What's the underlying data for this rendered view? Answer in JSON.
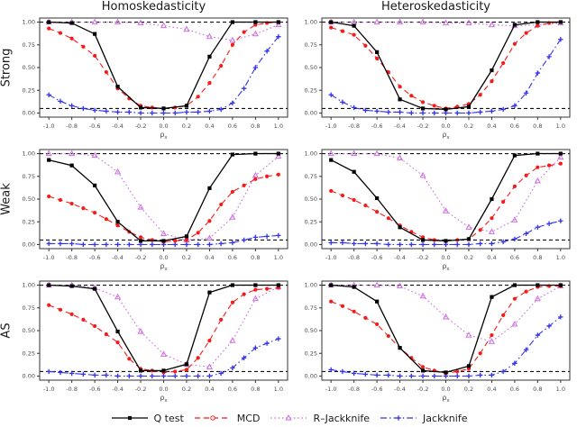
{
  "figure": {
    "col_titles": [
      "Homoskedasticity",
      "Heteroskedasticity"
    ],
    "row_labels": [
      "Strong",
      "Weak",
      "AS"
    ],
    "x_axis_symbol": "ρ",
    "x_axis_subscript": "x"
  },
  "axes": {
    "x_ticks": [
      -1.0,
      -0.8,
      -0.6,
      -0.4,
      -0.2,
      0.0,
      0.2,
      0.4,
      0.6,
      0.8,
      1.0
    ],
    "x_tick_labels": [
      "-1.0",
      "-0.8",
      "-0.6",
      "-0.4",
      "-0.2",
      "0.0",
      "0.2",
      "0.4",
      "0.6",
      "0.8",
      "1.0"
    ],
    "y_ticks": [
      0.0,
      0.25,
      0.5,
      0.75,
      1.0
    ],
    "y_tick_labels": [
      "0.00",
      "0.25",
      "0.50",
      "0.75",
      "1.00"
    ],
    "x_range": [
      -1.0,
      1.0
    ],
    "y_range": [
      0.0,
      1.0
    ],
    "reference_lines": [
      0.05,
      1.0
    ],
    "grid": "off"
  },
  "legend": {
    "position": "bottom",
    "items": [
      {
        "label": "Q test",
        "color": "#000000",
        "dash": "solid",
        "marker": "square"
      },
      {
        "label": "MCD",
        "color": "#F61B1B",
        "dash": "dashed",
        "marker": "circle"
      },
      {
        "label": "R–Jackknife",
        "color": "#CC6FDF",
        "dash": "dotted",
        "marker": "triangle"
      },
      {
        "label": "Jackknife",
        "color": "#3333EE",
        "dash": "dashdot",
        "marker": "plus"
      }
    ]
  },
  "chart_meta": {
    "x_coarse": [
      -1.0,
      -0.8,
      -0.6,
      -0.4,
      -0.2,
      0.0,
      0.2,
      0.4,
      0.6,
      0.8,
      1.0
    ],
    "x_fine": [
      -1.0,
      -0.9,
      -0.8,
      -0.7,
      -0.6,
      -0.5,
      -0.4,
      -0.3,
      -0.2,
      -0.1,
      0.0,
      0.1,
      0.2,
      0.3,
      0.4,
      0.5,
      0.6,
      0.7,
      0.8,
      0.9,
      1.0
    ]
  },
  "chart_data": [
    {
      "type": "line",
      "row": "Strong",
      "col": "Homoskedasticity",
      "series": [
        {
          "name": "Q test",
          "x": "coarse",
          "y": [
            1.0,
            0.99,
            0.87,
            0.29,
            0.06,
            0.05,
            0.08,
            0.62,
            1.0,
            1.0,
            1.0
          ]
        },
        {
          "name": "MCD",
          "x": "fine",
          "y": [
            0.93,
            0.88,
            0.82,
            0.73,
            0.63,
            0.45,
            0.27,
            0.16,
            0.08,
            0.06,
            0.05,
            0.06,
            0.08,
            0.18,
            0.33,
            0.52,
            0.75,
            0.89,
            0.97,
            0.99,
            1.0
          ]
        },
        {
          "name": "R–Jackknife",
          "x": "coarse",
          "y": [
            1.0,
            1.0,
            1.0,
            1.0,
            0.99,
            0.96,
            0.92,
            0.84,
            0.8,
            0.87,
            0.97
          ]
        },
        {
          "name": "Jackknife",
          "x": "fine",
          "y": [
            0.2,
            0.13,
            0.08,
            0.05,
            0.03,
            0.02,
            0.01,
            0.01,
            0.0,
            0.0,
            0.0,
            0.0,
            0.01,
            0.01,
            0.02,
            0.04,
            0.11,
            0.27,
            0.5,
            0.68,
            0.84
          ]
        }
      ]
    },
    {
      "type": "line",
      "row": "Strong",
      "col": "Heteroskedasticity",
      "series": [
        {
          "name": "Q test",
          "x": "coarse",
          "y": [
            1.0,
            0.96,
            0.67,
            0.15,
            0.05,
            0.04,
            0.07,
            0.47,
            0.97,
            1.0,
            1.0
          ]
        },
        {
          "name": "MCD",
          "x": "fine",
          "y": [
            0.94,
            0.9,
            0.86,
            0.74,
            0.6,
            0.45,
            0.29,
            0.19,
            0.12,
            0.08,
            0.05,
            0.07,
            0.1,
            0.2,
            0.35,
            0.55,
            0.76,
            0.88,
            0.96,
            0.99,
            1.0
          ]
        },
        {
          "name": "R–Jackknife",
          "x": "coarse",
          "y": [
            1.0,
            1.0,
            1.0,
            1.0,
            1.0,
            0.99,
            0.99,
            0.97,
            0.96,
            0.97,
            0.99
          ]
        },
        {
          "name": "Jackknife",
          "x": "fine",
          "y": [
            0.2,
            0.12,
            0.06,
            0.03,
            0.02,
            0.01,
            0.01,
            0.0,
            0.0,
            0.0,
            0.0,
            0.0,
            0.0,
            0.01,
            0.02,
            0.04,
            0.08,
            0.22,
            0.44,
            0.62,
            0.81
          ]
        }
      ]
    },
    {
      "type": "line",
      "row": "Weak",
      "col": "Homoskedasticity",
      "series": [
        {
          "name": "Q test",
          "x": "coarse",
          "y": [
            0.93,
            0.87,
            0.65,
            0.25,
            0.04,
            0.04,
            0.09,
            0.62,
            0.99,
            1.0,
            1.0
          ]
        },
        {
          "name": "MCD",
          "x": "fine",
          "y": [
            0.53,
            0.49,
            0.45,
            0.4,
            0.35,
            0.28,
            0.21,
            0.14,
            0.08,
            0.05,
            0.03,
            0.04,
            0.05,
            0.13,
            0.26,
            0.44,
            0.58,
            0.65,
            0.72,
            0.75,
            0.77
          ]
        },
        {
          "name": "R–Jackknife",
          "x": "coarse",
          "y": [
            1.0,
            1.0,
            0.98,
            0.8,
            0.41,
            0.12,
            0.05,
            0.07,
            0.3,
            0.76,
            0.97
          ]
        },
        {
          "name": "Jackknife",
          "x": "fine",
          "y": [
            0.01,
            0.01,
            0.01,
            0.0,
            0.0,
            0.0,
            0.0,
            0.0,
            0.0,
            0.0,
            0.0,
            0.0,
            0.0,
            0.0,
            0.0,
            0.01,
            0.02,
            0.05,
            0.08,
            0.09,
            0.1
          ]
        }
      ]
    },
    {
      "type": "line",
      "row": "Weak",
      "col": "Heteroskedasticity",
      "series": [
        {
          "name": "Q test",
          "x": "coarse",
          "y": [
            0.93,
            0.8,
            0.51,
            0.19,
            0.05,
            0.04,
            0.06,
            0.5,
            0.98,
            1.0,
            1.0
          ]
        },
        {
          "name": "MCD",
          "x": "fine",
          "y": [
            0.59,
            0.54,
            0.49,
            0.43,
            0.36,
            0.29,
            0.21,
            0.14,
            0.08,
            0.05,
            0.04,
            0.05,
            0.06,
            0.16,
            0.29,
            0.47,
            0.64,
            0.76,
            0.85,
            0.87,
            0.89
          ]
        },
        {
          "name": "R–Jackknife",
          "x": "coarse",
          "y": [
            1.0,
            1.0,
            1.0,
            0.95,
            0.76,
            0.37,
            0.19,
            0.14,
            0.27,
            0.7,
            0.96
          ]
        },
        {
          "name": "Jackknife",
          "x": "fine",
          "y": [
            0.02,
            0.02,
            0.01,
            0.01,
            0.01,
            0.0,
            0.0,
            0.0,
            0.0,
            0.0,
            0.0,
            0.0,
            0.0,
            0.01,
            0.01,
            0.03,
            0.06,
            0.12,
            0.19,
            0.23,
            0.26
          ]
        }
      ]
    },
    {
      "type": "line",
      "row": "AS",
      "col": "Homoskedasticity",
      "series": [
        {
          "name": "Q test",
          "x": "coarse",
          "y": [
            1.0,
            0.99,
            0.96,
            0.49,
            0.06,
            0.06,
            0.13,
            0.92,
            1.0,
            1.0,
            1.0
          ]
        },
        {
          "name": "MCD",
          "x": "fine",
          "y": [
            0.78,
            0.73,
            0.68,
            0.62,
            0.55,
            0.46,
            0.37,
            0.19,
            0.08,
            0.06,
            0.04,
            0.05,
            0.07,
            0.2,
            0.39,
            0.62,
            0.81,
            0.9,
            0.95,
            0.96,
            0.97
          ]
        },
        {
          "name": "R–Jackknife",
          "x": "coarse",
          "y": [
            1.0,
            1.0,
            0.97,
            0.87,
            0.49,
            0.24,
            0.13,
            0.1,
            0.39,
            0.85,
            0.98
          ]
        },
        {
          "name": "Jackknife",
          "x": "fine",
          "y": [
            0.05,
            0.04,
            0.03,
            0.02,
            0.01,
            0.01,
            0.0,
            0.0,
            0.0,
            0.0,
            0.0,
            0.0,
            0.0,
            0.0,
            0.0,
            0.03,
            0.09,
            0.2,
            0.31,
            0.36,
            0.41
          ]
        }
      ]
    },
    {
      "type": "line",
      "row": "AS",
      "col": "Heteroskedasticity",
      "series": [
        {
          "name": "Q test",
          "x": "coarse",
          "y": [
            1.0,
            0.98,
            0.82,
            0.31,
            0.06,
            0.04,
            0.11,
            0.87,
            1.0,
            1.0,
            1.0
          ]
        },
        {
          "name": "MCD",
          "x": "fine",
          "y": [
            0.82,
            0.77,
            0.71,
            0.64,
            0.57,
            0.44,
            0.31,
            0.2,
            0.1,
            0.06,
            0.03,
            0.05,
            0.08,
            0.25,
            0.45,
            0.67,
            0.85,
            0.93,
            0.98,
            0.99,
            0.99
          ]
        },
        {
          "name": "R–Jackknife",
          "x": "coarse",
          "y": [
            1.0,
            1.0,
            1.0,
            0.99,
            0.88,
            0.65,
            0.45,
            0.38,
            0.57,
            0.85,
            0.99
          ]
        },
        {
          "name": "Jackknife",
          "x": "fine",
          "y": [
            0.07,
            0.05,
            0.03,
            0.02,
            0.01,
            0.01,
            0.0,
            0.0,
            0.0,
            0.0,
            0.0,
            0.0,
            0.0,
            0.01,
            0.01,
            0.05,
            0.14,
            0.29,
            0.45,
            0.55,
            0.65
          ]
        }
      ]
    }
  ]
}
